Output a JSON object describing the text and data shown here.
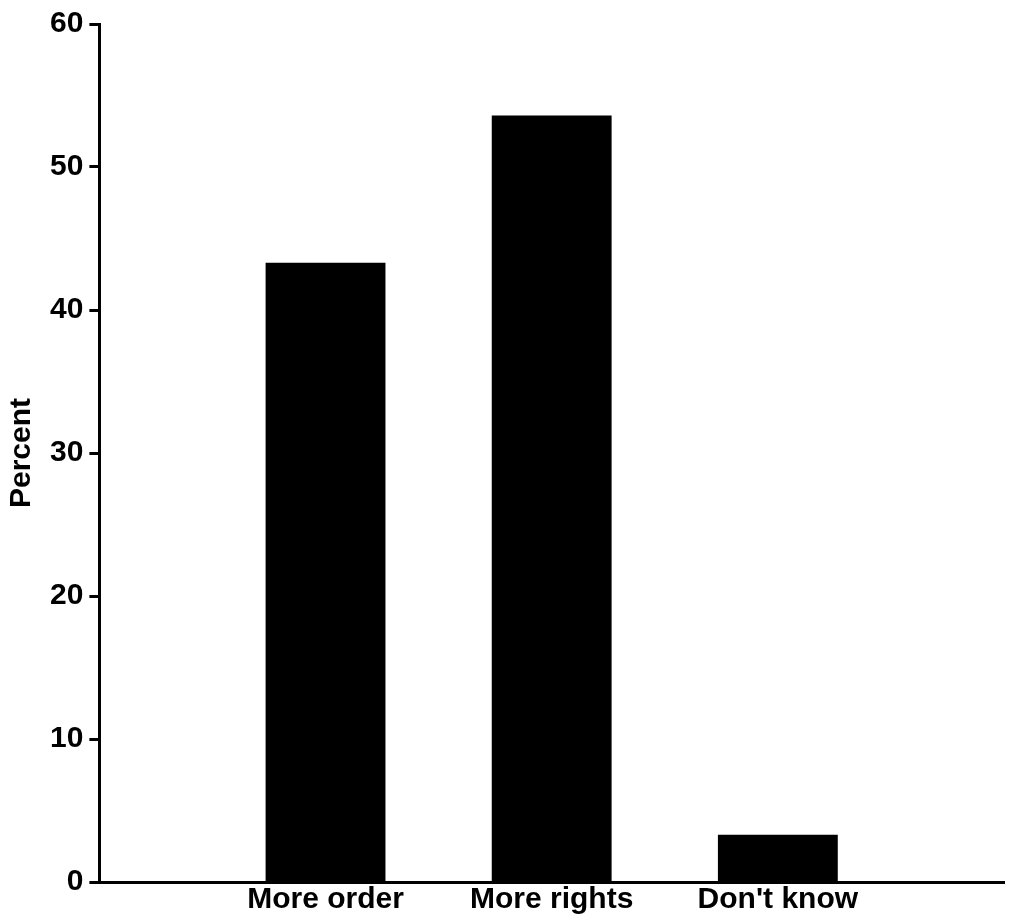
{
  "chart_data": {
    "type": "bar",
    "ylabel": "Percent",
    "categories": [
      "More order",
      "More rights",
      "Don't know"
    ],
    "values": [
      43.3,
      53.6,
      3.3
    ],
    "color": "#000000",
    "ylim": [
      0,
      60
    ],
    "yticks": [
      0,
      10,
      20,
      30,
      40,
      50,
      60
    ],
    "grid": false,
    "legend": false
  }
}
